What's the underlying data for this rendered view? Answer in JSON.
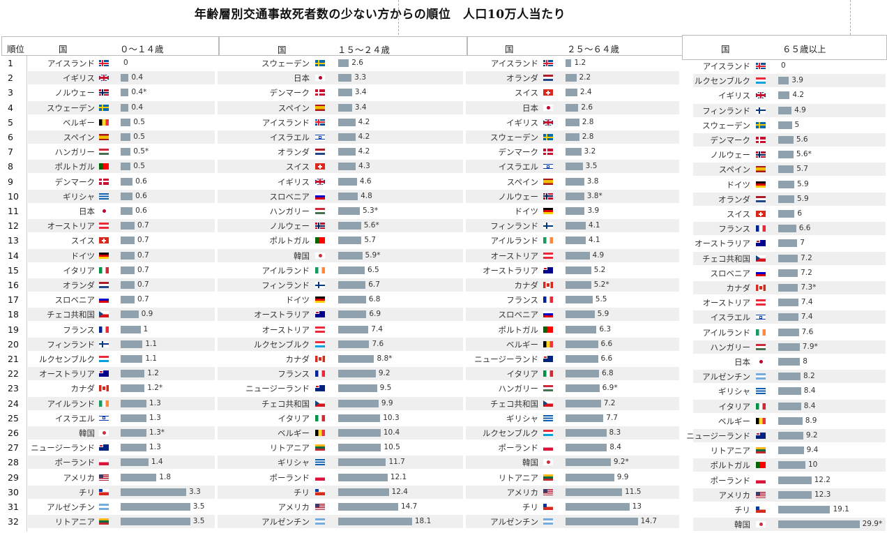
{
  "title": "年齢層別交通事故死者数の少ない方からの順位　人口10万人当たり",
  "header": {
    "rank_label": "順位",
    "country_label": "国",
    "groups": [
      "０～１４歳",
      "１５～２４歳",
      "２５～６４歳",
      "６５歳以上"
    ]
  },
  "ranks": [
    "1",
    "2",
    "3",
    "4",
    "5",
    "6",
    "7",
    "8",
    "9",
    "10",
    "11",
    "12",
    "13",
    "14",
    "15",
    "16",
    "17",
    "18",
    "19",
    "20",
    "21",
    "22",
    "23",
    "24",
    "25",
    "26",
    "27",
    "28",
    "29",
    "30",
    "31",
    "32"
  ],
  "chart_data": {
    "type": "bar",
    "orientation": "horizontal",
    "columns": [
      {
        "group": "０～１４歳",
        "countries": [
          "アイスランド",
          "イギリス",
          "ノルウェー",
          "スウェーデン",
          "ベルギー",
          "スペイン",
          "ハンガリー",
          "ポルトガル",
          "デンマーク",
          "ギリシャ",
          "日本",
          "オーストリア",
          "スイス",
          "ドイツ",
          "イタリア",
          "オランダ",
          "スロベニア",
          "チェコ共和国",
          "フランス",
          "フィンランド",
          "ルクセンブルク",
          "オーストラリア",
          "カナダ",
          "アイルランド",
          "イスラエル",
          "韓国",
          "ニュージーランド",
          "ポーランド",
          "アメリカ",
          "チリ",
          "アルゼンチン",
          "リトアニア"
        ],
        "values": [
          0,
          0.4,
          0.4,
          0.4,
          0.5,
          0.5,
          0.5,
          0.5,
          0.6,
          0.6,
          0.6,
          0.7,
          0.7,
          0.7,
          0.7,
          0.7,
          0.7,
          0.9,
          1,
          1.1,
          1.1,
          1.2,
          1.2,
          1.3,
          1.3,
          1.3,
          1.3,
          1.4,
          1.8,
          3.3,
          3.5,
          3.5
        ],
        "labels": [
          "0",
          "0.4",
          "0.4*",
          "0.4",
          "0.5",
          "0.5",
          "0.5*",
          "0.5",
          "0.6",
          "0.6",
          "0.6",
          "0.7",
          "0.7",
          "0.7",
          "0.7",
          "0.7",
          "0.7",
          "0.9",
          "1",
          "1.1",
          "1.1",
          "1.2",
          "1.2*",
          "1.3",
          "1.3",
          "1.3*",
          "1.3",
          "1.4",
          "1.8",
          "3.3",
          "3.5",
          "3.5"
        ]
      },
      {
        "group": "１５～２４歳",
        "countries": [
          "スウェーデン",
          "日本",
          "デンマーク",
          "スペイン",
          "アイスランド",
          "イスラエル",
          "オランダ",
          "スイス",
          "イギリス",
          "スロベニア",
          "ハンガリー",
          "ノルウェー",
          "ポルトガル",
          "韓国",
          "アイルランド",
          "フィンランド",
          "ドイツ",
          "オーストラリア",
          "オーストリア",
          "ルクセンブルク",
          "カナダ",
          "フランス",
          "ニュージーランド",
          "チェコ共和国",
          "イタリア",
          "ベルギー",
          "リトアニア",
          "ギリシャ",
          "ポーランド",
          "チリ",
          "アメリカ",
          "アルゼンチン"
        ],
        "values": [
          2.6,
          3.3,
          3.4,
          3.4,
          4.2,
          4.2,
          4.2,
          4.3,
          4.6,
          4.8,
          5.3,
          5.6,
          5.7,
          5.9,
          6.5,
          6.7,
          6.8,
          6.9,
          7.4,
          7.6,
          8.8,
          9.2,
          9.5,
          9.9,
          10.3,
          10.4,
          10.5,
          11.7,
          12.1,
          12.4,
          14.7,
          18.1
        ],
        "labels": [
          "2.6",
          "3.3",
          "3.4",
          "3.4",
          "4.2",
          "4.2",
          "4.2",
          "4.3",
          "4.6",
          "4.8",
          "5.3*",
          "5.6*",
          "5.7",
          "5.9*",
          "6.5",
          "6.7",
          "6.8",
          "6.9",
          "7.4",
          "7.6",
          "8.8*",
          "9.2",
          "9.5",
          "9.9",
          "10.3",
          "10.4",
          "10.5",
          "11.7",
          "12.1",
          "12.4",
          "14.7",
          "18.1"
        ]
      },
      {
        "group": "２５～６４歳",
        "countries": [
          "アイスランド",
          "オランダ",
          "スイス",
          "日本",
          "イギリス",
          "スウェーデン",
          "デンマーク",
          "イスラエル",
          "スペイン",
          "ノルウェー",
          "ドイツ",
          "フィンランド",
          "アイルランド",
          "オーストリア",
          "オーストラリア",
          "カナダ",
          "フランス",
          "スロベニア",
          "ポルトガル",
          "ベルギー",
          "ニュージーランド",
          "イタリア",
          "ハンガリー",
          "チェコ共和国",
          "ギリシャ",
          "ルクセンブルク",
          "ポーランド",
          "韓国",
          "リトアニア",
          "アメリカ",
          "チリ",
          "アルゼンチン"
        ],
        "values": [
          1.2,
          2.2,
          2.4,
          2.6,
          2.8,
          2.8,
          3.2,
          3.5,
          3.8,
          3.8,
          3.9,
          4.1,
          4.1,
          4.9,
          5.2,
          5.2,
          5.5,
          5.9,
          6.3,
          6.6,
          6.6,
          6.8,
          6.9,
          7.2,
          7.7,
          8.3,
          8.4,
          9.2,
          9.9,
          11.5,
          13,
          14.7
        ],
        "labels": [
          "1.2",
          "2.2",
          "2.4",
          "2.6",
          "2.8",
          "2.8",
          "3.2",
          "3.5",
          "3.8",
          "3.8*",
          "3.9",
          "4.1",
          "4.1",
          "4.9",
          "5.2",
          "5.2*",
          "5.5",
          "5.9",
          "6.3",
          "6.6",
          "6.6",
          "6.8",
          "6.9*",
          "7.2",
          "7.7",
          "8.3",
          "8.4",
          "9.2*",
          "9.9",
          "11.5",
          "13",
          "14.7"
        ]
      },
      {
        "group": "６５歳以上",
        "countries": [
          "アイスランド",
          "ルクセンブルク",
          "イギリス",
          "フィンランド",
          "スウェーデン",
          "デンマーク",
          "ノルウェー",
          "スペイン",
          "ドイツ",
          "オランダ",
          "スイス",
          "フランス",
          "オーストラリア",
          "チェコ共和国",
          "スロベニア",
          "カナダ",
          "オーストリア",
          "イスラエル",
          "アイルランド",
          "ハンガリー",
          "日本",
          "アルゼンチン",
          "ギリシャ",
          "イタリア",
          "ベルギー",
          "ニュージーランド",
          "リトアニア",
          "ポルトガル",
          "ポーランド",
          "アメリカ",
          "チリ",
          "韓国"
        ],
        "values": [
          0,
          3.9,
          4.2,
          4.9,
          5,
          5.6,
          5.6,
          5.7,
          5.9,
          5.9,
          6,
          6.6,
          7,
          7.2,
          7.2,
          7.3,
          7.4,
          7.4,
          7.6,
          7.9,
          8,
          8.2,
          8.4,
          8.4,
          8.9,
          9.2,
          9.4,
          10,
          12.2,
          12.3,
          19.1,
          29.9
        ],
        "labels": [
          "0",
          "3.9",
          "4.2",
          "4.9",
          "5",
          "5.6",
          "5.6*",
          "5.7",
          "5.9",
          "5.9",
          "6",
          "6.6",
          "7",
          "7.2",
          "7.2",
          "7.3*",
          "7.4",
          "7.4",
          "7.6",
          "7.9*",
          "8",
          "8.2",
          "8.4",
          "8.4",
          "8.9",
          "9.2",
          "9.4",
          "10",
          "12.2",
          "12.3",
          "19.1",
          "29.9*"
        ]
      }
    ]
  },
  "flags": {
    "アイスランド": {
      "type": "nordic",
      "bg": "#02529c",
      "cross": "#dc1e35",
      "border": "#ffffff"
    },
    "ノルウェー": {
      "type": "nordic",
      "bg": "#ba0c2f",
      "cross": "#00205b",
      "border": "#ffffff"
    },
    "スウェーデン": {
      "type": "nordic",
      "bg": "#006aa7",
      "cross": "#fecc00"
    },
    "デンマーク": {
      "type": "nordic",
      "bg": "#c8102e",
      "cross": "#ffffff"
    },
    "フィンランド": {
      "type": "nordic",
      "bg": "#ffffff",
      "cross": "#003580"
    },
    "イギリス": {
      "type": "uk",
      "bg": "#012169",
      "cross": "#c8102e",
      "border": "#ffffff"
    },
    "ベルギー": {
      "type": "v",
      "colors": [
        "#000000",
        "#fdda24",
        "#ef3340"
      ]
    },
    "フランス": {
      "type": "v",
      "colors": [
        "#002395",
        "#ffffff",
        "#ed2939"
      ]
    },
    "イタリア": {
      "type": "v",
      "colors": [
        "#009246",
        "#ffffff",
        "#ce2b37"
      ]
    },
    "アイルランド": {
      "type": "v",
      "colors": [
        "#169b62",
        "#ffffff",
        "#ff883e"
      ]
    },
    "ドイツ": {
      "type": "h",
      "colors": [
        "#000000",
        "#dd0000",
        "#ffce00"
      ]
    },
    "オランダ": {
      "type": "h",
      "colors": [
        "#ae1c28",
        "#ffffff",
        "#21468b"
      ]
    },
    "ハンガリー": {
      "type": "h",
      "colors": [
        "#ce2939",
        "#ffffff",
        "#477050"
      ]
    },
    "オーストリア": {
      "type": "h",
      "colors": [
        "#ed2939",
        "#ffffff",
        "#ed2939"
      ]
    },
    "ルクセンブルク": {
      "type": "h",
      "colors": [
        "#ed2939",
        "#ffffff",
        "#00a1de"
      ]
    },
    "リトアニア": {
      "type": "h",
      "colors": [
        "#fdb913",
        "#006a44",
        "#c1272d"
      ]
    },
    "スロベニア": {
      "type": "h",
      "colors": [
        "#ffffff",
        "#0000cc",
        "#dd0000"
      ]
    },
    "アルゼンチン": {
      "type": "h",
      "colors": [
        "#74acdf",
        "#ffffff",
        "#74acdf"
      ]
    },
    "ポーランド": {
      "type": "h",
      "colors": [
        "#ffffff",
        "#dc143c"
      ]
    },
    "スペイン": {
      "type": "h",
      "colors": [
        "#aa151b",
        "#f1bf00",
        "#f1bf00",
        "#aa151b"
      ]
    },
    "ギリシャ": {
      "type": "h",
      "colors": [
        "#0d5eaf",
        "#ffffff",
        "#0d5eaf",
        "#ffffff",
        "#0d5eaf"
      ]
    },
    "スイス": {
      "type": "swiss",
      "bg": "#da291c",
      "cross": "#ffffff"
    },
    "日本": {
      "type": "dot",
      "bg": "#ffffff",
      "dot": "#bc002d"
    },
    "韓国": {
      "type": "dot",
      "bg": "#ffffff",
      "dot": "#cd2e3a"
    },
    "ポルトガル": {
      "type": "vsplit",
      "colors": [
        "#006600",
        "#ff0000"
      ]
    },
    "カナダ": {
      "type": "canada",
      "colors": [
        "#d52b1e",
        "#ffffff",
        "#d52b1e"
      ]
    },
    "イスラエル": {
      "type": "israel",
      "bg": "#ffffff",
      "fg": "#0038b8"
    },
    "オーストラリア": {
      "type": "canton",
      "bg": "#00008b",
      "canton": "#c8102e"
    },
    "ニュージーランド": {
      "type": "canton",
      "bg": "#00247d",
      "canton": "#cc142b"
    },
    "アメリカ": {
      "type": "usa",
      "stripe": "#b22234",
      "canton": "#3c3b6e"
    },
    "チリ": {
      "type": "chile",
      "top": "#ffffff",
      "bottom": "#d52b1e",
      "canton": "#0039a6"
    },
    "チェコ共和国": {
      "type": "czech",
      "top": "#ffffff",
      "bottom": "#d7141a",
      "tri": "#11457e"
    }
  }
}
